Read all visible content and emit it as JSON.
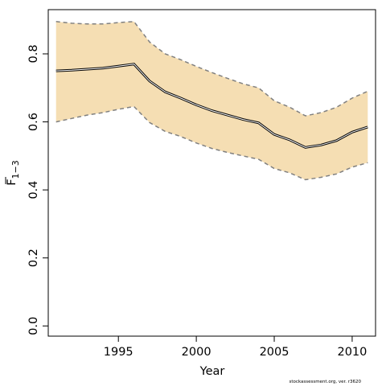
{
  "chart_data": {
    "type": "area",
    "xlabel": "Year",
    "ylabel_main": "F",
    "ylabel_sub": "1−3",
    "xlim": [
      1990.5,
      2011.5
    ],
    "ylim": [
      -0.03,
      0.93
    ],
    "xticks": [
      1995,
      2000,
      2005,
      2010
    ],
    "yticks": [
      0.0,
      0.2,
      0.4,
      0.6,
      0.8
    ],
    "x": [
      1991,
      1992,
      1993,
      1994,
      1995,
      1996,
      1997,
      1998,
      1999,
      2000,
      2001,
      2002,
      2003,
      2004,
      2005,
      2006,
      2007,
      2008,
      2009,
      2010,
      2011
    ],
    "series": [
      {
        "role": "estimate",
        "values": [
          0.75,
          0.752,
          0.755,
          0.758,
          0.764,
          0.77,
          0.72,
          0.688,
          0.67,
          0.65,
          0.633,
          0.62,
          0.607,
          0.597,
          0.563,
          0.547,
          0.525,
          0.532,
          0.545,
          0.57,
          0.585
        ]
      },
      {
        "role": "upper",
        "values": [
          0.895,
          0.89,
          0.888,
          0.888,
          0.892,
          0.895,
          0.835,
          0.8,
          0.783,
          0.763,
          0.745,
          0.728,
          0.712,
          0.7,
          0.662,
          0.643,
          0.618,
          0.627,
          0.643,
          0.67,
          0.69
        ]
      },
      {
        "role": "lower",
        "values": [
          0.6,
          0.61,
          0.62,
          0.627,
          0.637,
          0.645,
          0.598,
          0.572,
          0.557,
          0.538,
          0.522,
          0.51,
          0.5,
          0.49,
          0.463,
          0.45,
          0.43,
          0.437,
          0.447,
          0.467,
          0.48
        ]
      }
    ],
    "colors": {
      "band": "#f5deb3",
      "estimate": "#000000",
      "bounds": "#808080"
    }
  },
  "footer_text": "stockassessment.org, ver. r3620"
}
